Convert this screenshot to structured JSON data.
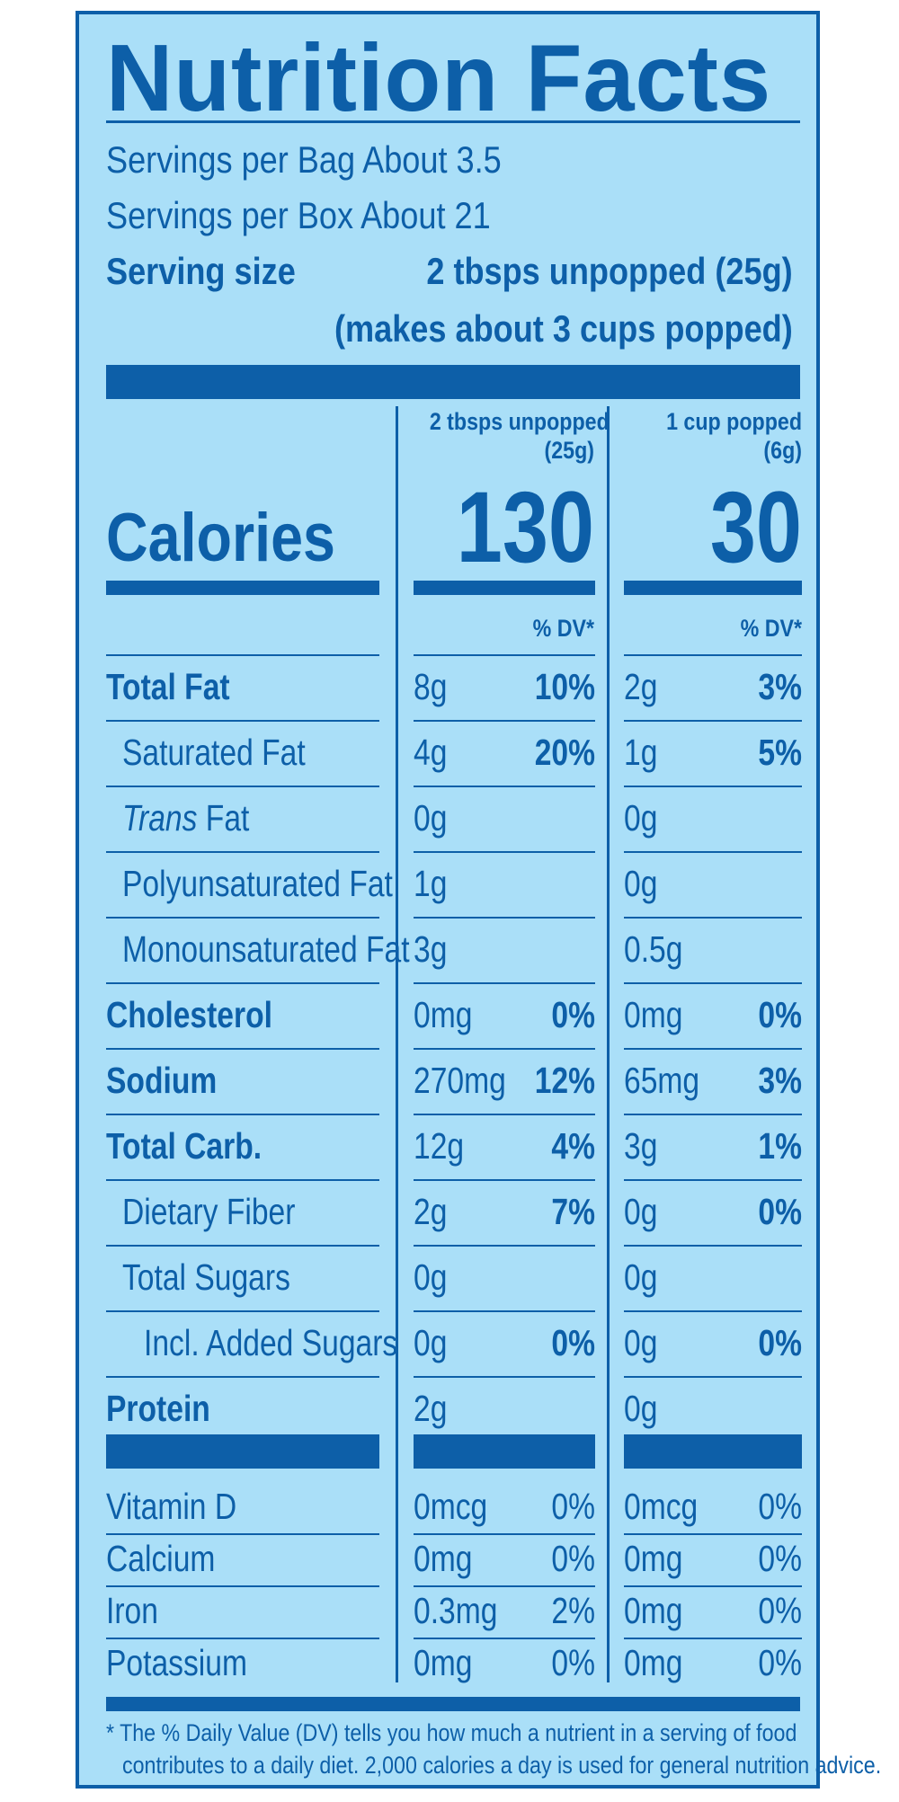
{
  "title": "Nutrition Facts",
  "servings": {
    "bag": "Servings per Bag About 3.5",
    "box": "Servings per Box About 21",
    "size_label": "Serving size",
    "size_value": "2 tbsps unpopped (25g)",
    "size_note": "(makes about 3 cups popped)"
  },
  "columns": [
    {
      "header_line1": "2 tbsps unpopped",
      "header_line2": "(25g)",
      "calories": "130",
      "dv_header": "% DV*"
    },
    {
      "header_line1": "1 cup popped",
      "header_line2": "(6g)",
      "calories": "30",
      "dv_header": "% DV*"
    }
  ],
  "calories_label": "Calories",
  "nutrients": [
    {
      "label": "Total Fat",
      "bold": true,
      "indent": 0,
      "c1_amt": "8g",
      "c1_pct": "10%",
      "c2_amt": "2g",
      "c2_pct": "3%"
    },
    {
      "label": "Saturated Fat",
      "bold": false,
      "indent": 1,
      "c1_amt": "4g",
      "c1_pct": "20%",
      "c2_amt": "1g",
      "c2_pct": "5%"
    },
    {
      "label_italic": "Trans",
      "label": " Fat",
      "bold": false,
      "indent": 1,
      "c1_amt": "0g",
      "c1_pct": "",
      "c2_amt": "0g",
      "c2_pct": ""
    },
    {
      "label": "Polyunsaturated Fat",
      "bold": false,
      "indent": 1,
      "c1_amt": "1g",
      "c1_pct": "",
      "c2_amt": "0g",
      "c2_pct": ""
    },
    {
      "label": "Monounsaturated Fat",
      "bold": false,
      "indent": 1,
      "c1_amt": "3g",
      "c1_pct": "",
      "c2_amt": "0.5g",
      "c2_pct": ""
    },
    {
      "label": "Cholesterol",
      "bold": true,
      "indent": 0,
      "c1_amt": "0mg",
      "c1_pct": "0%",
      "c2_amt": "0mg",
      "c2_pct": "0%"
    },
    {
      "label": "Sodium",
      "bold": true,
      "indent": 0,
      "c1_amt": "270mg",
      "c1_pct": "12%",
      "c2_amt": "65mg",
      "c2_pct": "3%"
    },
    {
      "label": "Total Carb.",
      "bold": true,
      "indent": 0,
      "c1_amt": "12g",
      "c1_pct": "4%",
      "c2_amt": "3g",
      "c2_pct": "1%"
    },
    {
      "label": "Dietary Fiber",
      "bold": false,
      "indent": 1,
      "c1_amt": "2g",
      "c1_pct": "7%",
      "c2_amt": "0g",
      "c2_pct": "0%"
    },
    {
      "label": "Total Sugars",
      "bold": false,
      "indent": 1,
      "c1_amt": "0g",
      "c1_pct": "",
      "c2_amt": "0g",
      "c2_pct": ""
    },
    {
      "label": "Incl. Added Sugars",
      "bold": false,
      "indent": 2,
      "c1_amt": "0g",
      "c1_pct": "0%",
      "c2_amt": "0g",
      "c2_pct": "0%"
    },
    {
      "label": "Protein",
      "bold": true,
      "indent": 0,
      "c1_amt": "2g",
      "c1_pct": "",
      "c2_amt": "0g",
      "c2_pct": ""
    }
  ],
  "vitamins": [
    {
      "label": "Vitamin D",
      "c1_amt": "0mcg",
      "c1_pct": "0%",
      "c2_amt": "0mcg",
      "c2_pct": "0%"
    },
    {
      "label": "Calcium",
      "c1_amt": "0mg",
      "c1_pct": "0%",
      "c2_amt": "0mg",
      "c2_pct": "0%"
    },
    {
      "label": "Iron",
      "c1_amt": "0.3mg",
      "c1_pct": "2%",
      "c2_amt": "0mg",
      "c2_pct": "0%"
    },
    {
      "label": "Potassium",
      "c1_amt": "0mg",
      "c1_pct": "0%",
      "c2_amt": "0mg",
      "c2_pct": "0%"
    }
  ],
  "footnote": {
    "line1": "* The % Daily Value (DV) tells you how much a nutrient in a serving of food",
    "line2": "contributes to a daily diet. 2,000 calories a day is used for general nutrition advice."
  },
  "colors": {
    "ink": "#0d5fa8",
    "background": "#aadff8"
  }
}
